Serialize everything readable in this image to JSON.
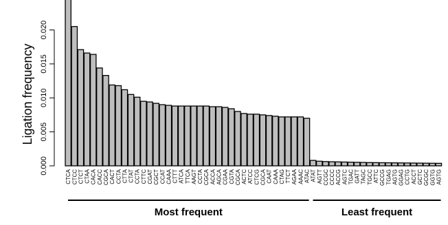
{
  "chart_data": {
    "type": "bar",
    "ylabel": "Ligation frequency",
    "ylim": [
      0,
      0.024
    ],
    "yticks": [
      "0.000",
      "0.005",
      "0.010",
      "0.015",
      "0.020"
    ],
    "ytick_values": [
      0,
      0.005,
      0.01,
      0.015,
      0.02
    ],
    "bar_color": "#bebebe",
    "categories": [
      "CTCA",
      "CTCC",
      "CTCT",
      "CTAA",
      "CACA",
      "CACC",
      "CGCA",
      "CACT",
      "CCTA",
      "CTTA",
      "CTAT",
      "CCTA",
      "CTTC",
      "CGAT",
      "CGCT",
      "CCAT",
      "CAAA",
      "CTTT",
      "ATCA",
      "TTCA",
      "AAGT",
      "CCTA",
      "CGCA",
      "ACCA",
      "AGCA",
      "CGAA",
      "CGTA",
      "CGCA",
      "ACTC",
      "ATCC",
      "CTCG",
      "CGCA",
      "CAAT",
      "CAAA",
      "CTAG",
      "TTCT",
      "AGAA",
      "AAAC",
      "ATAC",
      "ATAT",
      "AGTT",
      "CCGC",
      "CCCC",
      "ACCG",
      "AGTC",
      "TGAC",
      "GATT",
      "TAGC",
      "TGCC",
      "ATTC",
      "GCCG",
      "TGAG",
      "AGTG",
      "GGAG",
      "CCTG",
      "ACCT",
      "GCTC",
      "GCGC",
      "GGTG",
      "AGTG"
    ],
    "values": [
      0.0245,
      0.0205,
      0.0171,
      0.0166,
      0.0164,
      0.0144,
      0.0133,
      0.0119,
      0.0118,
      0.0112,
      0.0105,
      0.0101,
      0.0095,
      0.0094,
      0.0092,
      0.009,
      0.0089,
      0.0088,
      0.0088,
      0.0088,
      0.0088,
      0.0088,
      0.0088,
      0.0087,
      0.0087,
      0.0086,
      0.0084,
      0.008,
      0.0077,
      0.0076,
      0.0076,
      0.0075,
      0.0074,
      0.0073,
      0.0072,
      0.0072,
      0.0072,
      0.0072,
      0.007,
      0.0008,
      0.00068,
      0.00063,
      0.0006,
      0.00058,
      0.00056,
      0.00054,
      0.00052,
      0.0005,
      0.00048,
      0.00047,
      0.00046,
      0.00045,
      0.00044,
      0.00043,
      0.00042,
      0.00041,
      0.0004,
      0.00039,
      0.00038,
      0.00037
    ],
    "groups": [
      {
        "label": "Most frequent",
        "start": 0,
        "end": 38
      },
      {
        "label": "Least frequent",
        "start": 39,
        "end": 59
      }
    ]
  }
}
